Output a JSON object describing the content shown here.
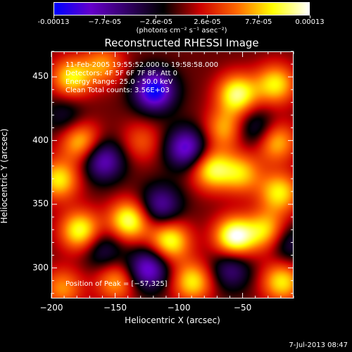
{
  "colorbar": {
    "tick_labels": [
      "-0.00013",
      "−7.7e-05",
      "−2.6e-05",
      "2.6e-05",
      "7.7e-05",
      "0.00013"
    ],
    "units": "(photons cm⁻² s⁻¹ asec⁻²)"
  },
  "chart_data": {
    "type": "heatmap",
    "title": "Reconstructed RHESSI Image",
    "xlabel": "Heliocentric X (arcsec)",
    "ylabel": "Heliocentric Y (arcsec)",
    "xlim": [
      -200,
      -10
    ],
    "ylim": [
      276,
      470
    ],
    "x_ticks": [
      -200,
      -150,
      -100,
      -50
    ],
    "x_tick_labels": [
      "−200",
      "−150",
      "−100",
      "−50"
    ],
    "y_ticks": [
      300,
      350,
      400,
      450
    ],
    "y_tick_labels": [
      "300",
      "350",
      "400",
      "450"
    ],
    "color_range": [
      -0.00013,
      0.00013
    ],
    "colormap": [
      "#0000ff",
      "#6600cc",
      "#330066",
      "#000000",
      "#cc0000",
      "#ff6600",
      "#ffff00",
      "#ffffff"
    ],
    "peak_position": [
      -57,
      325
    ],
    "blobs": [
      {
        "x": -57,
        "y": 325,
        "v": 1.0
      },
      {
        "x": -140,
        "y": 338,
        "v": 0.85
      },
      {
        "x": -178,
        "y": 330,
        "v": 0.8
      },
      {
        "x": -108,
        "y": 322,
        "v": 0.8
      },
      {
        "x": -75,
        "y": 378,
        "v": 0.75
      },
      {
        "x": -52,
        "y": 375,
        "v": 0.6
      },
      {
        "x": -22,
        "y": 360,
        "v": 0.7
      },
      {
        "x": -32,
        "y": 330,
        "v": 0.65
      },
      {
        "x": -20,
        "y": 290,
        "v": 0.7
      },
      {
        "x": -90,
        "y": 290,
        "v": 0.7
      },
      {
        "x": -150,
        "y": 290,
        "v": 0.55
      },
      {
        "x": -192,
        "y": 285,
        "v": 0.5
      },
      {
        "x": -195,
        "y": 370,
        "v": 0.7
      },
      {
        "x": -178,
        "y": 400,
        "v": 0.65
      },
      {
        "x": -130,
        "y": 400,
        "v": 0.35
      },
      {
        "x": -55,
        "y": 437,
        "v": 0.85
      },
      {
        "x": -25,
        "y": 445,
        "v": 0.7
      },
      {
        "x": -65,
        "y": 410,
        "v": 0.55
      },
      {
        "x": -185,
        "y": 450,
        "v": 0.7
      },
      {
        "x": -160,
        "y": 460,
        "v": 0.5
      },
      {
        "x": -25,
        "y": 400,
        "v": 0.65
      },
      {
        "x": -120,
        "y": 440,
        "v": -1.0
      },
      {
        "x": -160,
        "y": 385,
        "v": -0.7
      },
      {
        "x": -95,
        "y": 395,
        "v": -0.8
      },
      {
        "x": -115,
        "y": 350,
        "v": -0.6
      },
      {
        "x": -125,
        "y": 300,
        "v": -0.8
      },
      {
        "x": -60,
        "y": 300,
        "v": -0.5
      },
      {
        "x": -40,
        "y": 410,
        "v": -0.45
      },
      {
        "x": -160,
        "y": 315,
        "v": -0.4
      },
      {
        "x": -15,
        "y": 320,
        "v": -0.4
      },
      {
        "x": -190,
        "y": 420,
        "v": -0.3
      }
    ]
  },
  "annotations": {
    "line1": "11-Feb-2005 19:55:52.000 to 19:58:58.000",
    "line2": "Detectors: 4F 5F 6F 7F 8F, Att 0",
    "line3": "Energy Range: 25.0 - 50.0 keV",
    "line4": "Clean     Total counts: 3.56E+03",
    "peak": "Position of Peak = [−57,325]"
  },
  "timestamp": "7-Jul-2013 08:47"
}
